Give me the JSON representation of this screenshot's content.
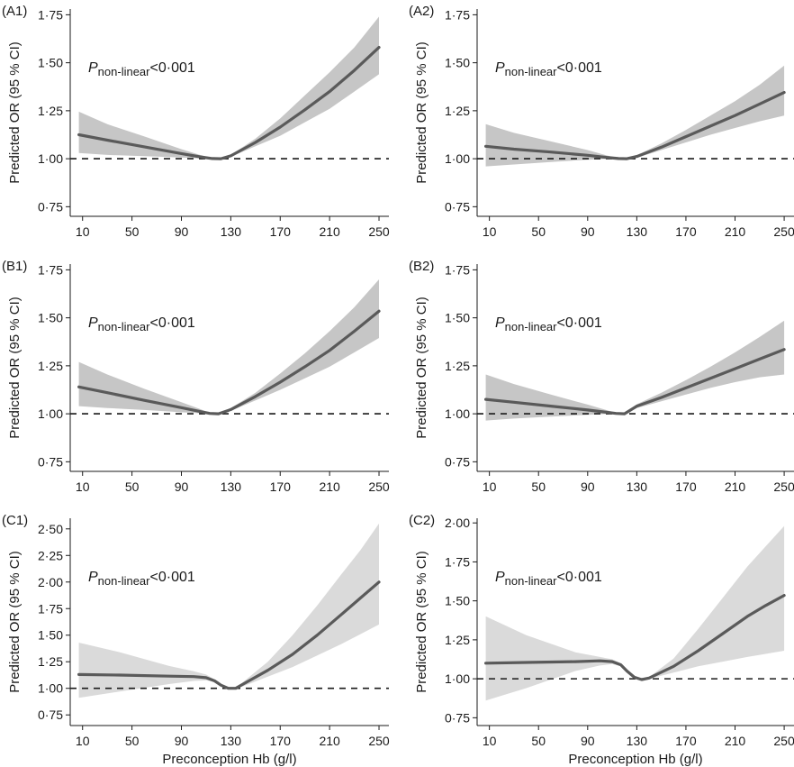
{
  "chart_data": [
    {
      "type": "line",
      "panel_label": "(A1)",
      "ylabel": "Predicted OR (95 % CI)",
      "xlabel": "",
      "xlim": [
        0,
        258
      ],
      "ylim": [
        0.7,
        1.78
      ],
      "xticks": [
        10,
        50,
        90,
        130,
        170,
        210,
        250
      ],
      "xtick_labels": [
        "10",
        "50",
        "90",
        "130",
        "170",
        "210",
        "250"
      ],
      "yticks": [
        0.75,
        1.0,
        1.25,
        1.5,
        1.75
      ],
      "ytick_labels": [
        "0·75",
        "1·00",
        "1·25",
        "1·50",
        "1·75"
      ],
      "reference_line": 1.0,
      "annotation": {
        "p": "P",
        "sub": "non-linear",
        "rest": "<0·001"
      },
      "band_color": "#c6c6c6",
      "x": [
        7,
        30,
        60,
        90,
        105,
        115,
        122,
        130,
        150,
        170,
        190,
        210,
        230,
        250
      ],
      "or": [
        1.125,
        1.097,
        1.062,
        1.027,
        1.01,
        1.001,
        1.0,
        1.015,
        1.085,
        1.165,
        1.255,
        1.35,
        1.46,
        1.58
      ],
      "lower": [
        1.03,
        1.02,
        1.013,
        1.006,
        1.002,
        1.0,
        1.0,
        1.01,
        1.065,
        1.12,
        1.19,
        1.26,
        1.35,
        1.44
      ],
      "upper": [
        1.245,
        1.18,
        1.116,
        1.05,
        1.02,
        1.003,
        1.0,
        1.02,
        1.105,
        1.21,
        1.33,
        1.45,
        1.58,
        1.74
      ]
    },
    {
      "type": "line",
      "panel_label": "(A2)",
      "ylabel": "Predicted OR (95 % CI)",
      "xlabel": "",
      "xlim": [
        0,
        258
      ],
      "ylim": [
        0.7,
        1.78
      ],
      "xticks": [
        10,
        50,
        90,
        130,
        170,
        210,
        250
      ],
      "xtick_labels": [
        "10",
        "50",
        "90",
        "130",
        "170",
        "210",
        "250"
      ],
      "yticks": [
        0.75,
        1.0,
        1.25,
        1.5,
        1.75
      ],
      "ytick_labels": [
        "0·75",
        "1·00",
        "1·25",
        "1·50",
        "1·75"
      ],
      "reference_line": 1.0,
      "annotation": {
        "p": "P",
        "sub": "non-linear",
        "rest": "<0·001"
      },
      "band_color": "#c6c6c6",
      "x": [
        7,
        30,
        60,
        90,
        105,
        115,
        122,
        130,
        150,
        170,
        190,
        210,
        230,
        250
      ],
      "or": [
        1.065,
        1.05,
        1.035,
        1.018,
        1.007,
        1.001,
        1.0,
        1.012,
        1.06,
        1.115,
        1.17,
        1.225,
        1.285,
        1.345
      ],
      "lower": [
        0.96,
        0.97,
        0.983,
        0.995,
        0.999,
        1.0,
        1.0,
        1.005,
        1.045,
        1.085,
        1.125,
        1.16,
        1.195,
        1.225
      ],
      "upper": [
        1.18,
        1.135,
        1.09,
        1.045,
        1.018,
        1.003,
        1.0,
        1.018,
        1.08,
        1.15,
        1.225,
        1.3,
        1.385,
        1.485
      ]
    },
    {
      "type": "line",
      "panel_label": "(B1)",
      "ylabel": "Predicted OR (95 % CI)",
      "xlabel": "",
      "xlim": [
        0,
        258
      ],
      "ylim": [
        0.7,
        1.78
      ],
      "xticks": [
        10,
        50,
        90,
        130,
        170,
        210,
        250
      ],
      "xtick_labels": [
        "10",
        "50",
        "90",
        "130",
        "170",
        "210",
        "250"
      ],
      "yticks": [
        0.75,
        1.0,
        1.25,
        1.5,
        1.75
      ],
      "ytick_labels": [
        "0·75",
        "1·00",
        "1·25",
        "1·50",
        "1·75"
      ],
      "reference_line": 1.0,
      "annotation": {
        "p": "P",
        "sub": "non-linear",
        "rest": "<0·001"
      },
      "band_color": "#c6c6c6",
      "x": [
        7,
        30,
        60,
        90,
        105,
        113,
        120,
        130,
        150,
        170,
        190,
        210,
        230,
        250
      ],
      "or": [
        1.14,
        1.11,
        1.07,
        1.032,
        1.012,
        1.002,
        1.0,
        1.022,
        1.09,
        1.165,
        1.245,
        1.33,
        1.43,
        1.535
      ],
      "lower": [
        1.04,
        1.03,
        1.02,
        1.008,
        1.003,
        1.0,
        1.0,
        1.015,
        1.07,
        1.125,
        1.185,
        1.245,
        1.32,
        1.395
      ],
      "upper": [
        1.27,
        1.205,
        1.13,
        1.06,
        1.025,
        1.004,
        1.0,
        1.03,
        1.11,
        1.21,
        1.315,
        1.43,
        1.555,
        1.7
      ]
    },
    {
      "type": "line",
      "panel_label": "(B2)",
      "ylabel": "Predicted OR (95 % CI)",
      "xlabel": "",
      "xlim": [
        0,
        258
      ],
      "ylim": [
        0.7,
        1.78
      ],
      "xticks": [
        10,
        50,
        90,
        130,
        170,
        210,
        250
      ],
      "xtick_labels": [
        "10",
        "50",
        "90",
        "130",
        "170",
        "210",
        "250"
      ],
      "yticks": [
        0.75,
        1.0,
        1.25,
        1.5,
        1.75
      ],
      "ytick_labels": [
        "0·75",
        "1·00",
        "1·25",
        "1·50",
        "1·75"
      ],
      "reference_line": 1.0,
      "annotation": {
        "p": "P",
        "sub": "non-linear",
        "rest": "<0·001"
      },
      "band_color": "#c6c6c6",
      "x": [
        7,
        30,
        60,
        90,
        105,
        113,
        120,
        130,
        150,
        170,
        190,
        210,
        230,
        250
      ],
      "or": [
        1.075,
        1.06,
        1.04,
        1.02,
        1.008,
        1.002,
        1.0,
        1.04,
        1.085,
        1.135,
        1.185,
        1.235,
        1.285,
        1.335
      ],
      "lower": [
        0.965,
        0.975,
        0.985,
        0.995,
        0.999,
        1.0,
        1.0,
        1.03,
        1.065,
        1.1,
        1.135,
        1.165,
        1.19,
        1.205
      ],
      "upper": [
        1.205,
        1.155,
        1.1,
        1.048,
        1.02,
        1.005,
        1.0,
        1.05,
        1.11,
        1.175,
        1.245,
        1.32,
        1.4,
        1.485
      ]
    },
    {
      "type": "line",
      "panel_label": "(C1)",
      "ylabel": "Predicted OR (95 % CI)",
      "xlabel": "Preconception Hb (g/l)",
      "xlim": [
        0,
        258
      ],
      "ylim": [
        0.65,
        2.6
      ],
      "xticks": [
        10,
        50,
        90,
        130,
        170,
        210,
        250
      ],
      "xtick_labels": [
        "10",
        "50",
        "90",
        "130",
        "170",
        "210",
        "250"
      ],
      "yticks": [
        0.75,
        1.0,
        1.25,
        1.5,
        1.75,
        2.0,
        2.25,
        2.5
      ],
      "ytick_labels": [
        "0·75",
        "1·00",
        "1·25",
        "1·50",
        "1·75",
        "2·00",
        "2·25",
        "2·50"
      ],
      "reference_line": 1.0,
      "annotation": {
        "p": "P",
        "sub": "non-linear",
        "rest": "<0·001"
      },
      "band_color": "#dadada",
      "x": [
        7,
        40,
        80,
        100,
        110,
        117,
        122,
        128,
        134,
        140,
        160,
        180,
        200,
        220,
        235,
        250
      ],
      "or": [
        1.13,
        1.125,
        1.115,
        1.11,
        1.1,
        1.07,
        1.03,
        1.0,
        1.0,
        1.04,
        1.17,
        1.32,
        1.5,
        1.7,
        1.85,
        2.0
      ],
      "lower": [
        0.91,
        0.97,
        1.04,
        1.07,
        1.075,
        1.06,
        1.025,
        1.0,
        1.0,
        1.02,
        1.11,
        1.2,
        1.31,
        1.42,
        1.51,
        1.6
      ],
      "upper": [
        1.43,
        1.34,
        1.21,
        1.16,
        1.13,
        1.085,
        1.035,
        1.0,
        1.0,
        1.06,
        1.25,
        1.5,
        1.78,
        2.08,
        2.3,
        2.55
      ]
    },
    {
      "type": "line",
      "panel_label": "(C2)",
      "ylabel": "Predicted OR (95 % CI)",
      "xlabel": "Preconception Hb (g/l)",
      "xlim": [
        0,
        258
      ],
      "ylim": [
        0.7,
        2.03
      ],
      "xticks": [
        10,
        50,
        90,
        130,
        170,
        210,
        250
      ],
      "xtick_labels": [
        "10",
        "50",
        "90",
        "130",
        "170",
        "210",
        "250"
      ],
      "yticks": [
        0.75,
        1.0,
        1.25,
        1.5,
        1.75,
        2.0
      ],
      "ytick_labels": [
        "0·75",
        "1·00",
        "1·25",
        "1·50",
        "1·75",
        "2·00"
      ],
      "reference_line": 1.0,
      "annotation": {
        "p": "P",
        "sub": "non-linear",
        "rest": "<0·001"
      },
      "band_color": "#dadada",
      "x": [
        7,
        40,
        80,
        100,
        110,
        117,
        122,
        128,
        134,
        140,
        160,
        180,
        200,
        220,
        235,
        250
      ],
      "or": [
        1.1,
        1.105,
        1.11,
        1.115,
        1.11,
        1.09,
        1.05,
        1.01,
        0.995,
        1.005,
        1.08,
        1.18,
        1.29,
        1.4,
        1.47,
        1.535
      ],
      "lower": [
        0.86,
        0.94,
        1.05,
        1.085,
        1.095,
        1.08,
        1.045,
        1.008,
        0.995,
        1.0,
        1.04,
        1.08,
        1.11,
        1.14,
        1.16,
        1.18
      ],
      "upper": [
        1.4,
        1.28,
        1.17,
        1.14,
        1.125,
        1.1,
        1.055,
        1.012,
        0.995,
        1.01,
        1.13,
        1.32,
        1.52,
        1.72,
        1.85,
        1.98
      ]
    }
  ]
}
